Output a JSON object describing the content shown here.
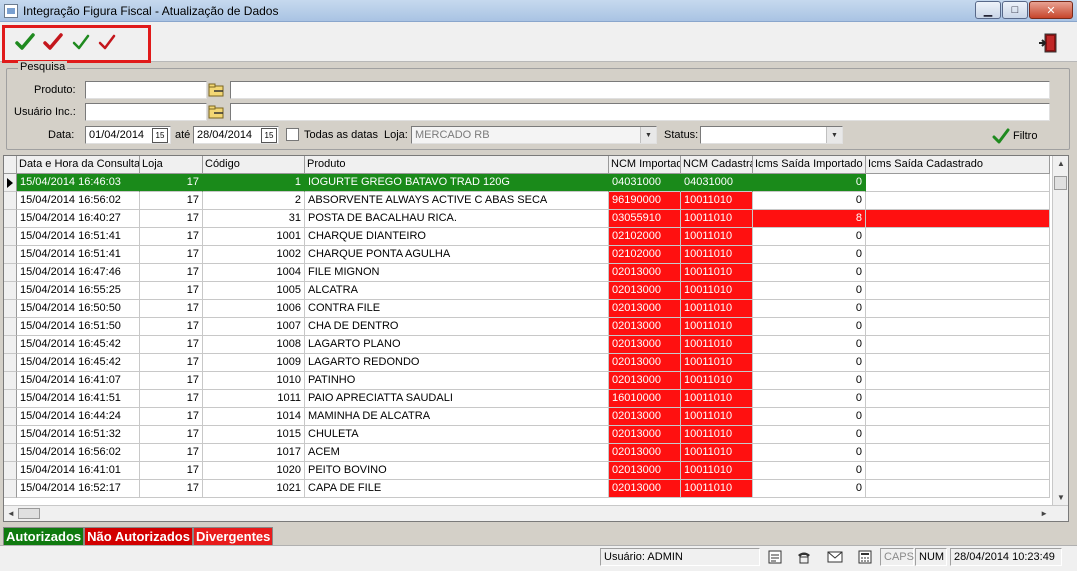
{
  "window": {
    "title": "Integração Figura Fiscal - Atualização de Dados",
    "min_glyph": "▁",
    "max_glyph": "□",
    "close_glyph": "✕"
  },
  "toolbar": {
    "buttons": [
      {
        "icon": "check-green-icon",
        "color": "#1f8a1f"
      },
      {
        "icon": "check-red-icon",
        "color": "#c4161c"
      },
      {
        "icon": "check-green-icon",
        "color": "#1f8a1f"
      },
      {
        "icon": "check-red-icon",
        "color": "#c4161c"
      }
    ],
    "exit_icon": "exit-door-icon"
  },
  "search": {
    "group_title": "Pesquisa",
    "produto_label": "Produto:",
    "produto_code": "",
    "produto_desc": "",
    "usuario_label": "Usuário Inc.:",
    "usuario_code": "",
    "usuario_desc": "",
    "data_label": "Data:",
    "date_from": "01/04/2014",
    "ate_label": "até",
    "date_to": "28/04/2014",
    "calendar_glyph": "15",
    "todas_label": "Todas as datas",
    "loja_label": "Loja:",
    "loja_value": "MERCADO RB",
    "status_label": "Status:",
    "status_value": "",
    "combo_arrow": "▼",
    "filter_label": "Filtro"
  },
  "grid": {
    "columns": [
      "Data e Hora da Consulta",
      "Loja",
      "Código",
      "Produto",
      "NCM Importado",
      "NCM Cadastrado",
      "Icms Saída Importado",
      "Icms Saída Cadastrado"
    ],
    "rows": [
      {
        "datetime": "15/04/2014 16:46:03",
        "loja": "17",
        "codigo": "1",
        "produto": "IOGURTE GREGO BATAVO TRAD 120G",
        "ncm_imp": "04031000",
        "ncm_cad": "04031000",
        "icms_imp": "0",
        "icms_cad": "",
        "status": "autorizado"
      },
      {
        "datetime": "15/04/2014 16:56:02",
        "loja": "17",
        "codigo": "2",
        "produto": "ABSORVENTE ALWAYS ACTIVE C ABAS SECA",
        "ncm_imp": "96190000",
        "ncm_cad": "10011010",
        "icms_imp": "0",
        "icms_cad": "",
        "status": "ncm"
      },
      {
        "datetime": "15/04/2014 16:40:27",
        "loja": "17",
        "codigo": "31",
        "produto": "POSTA DE BACALHAU RICA.",
        "ncm_imp": "03055910",
        "ncm_cad": "10011010",
        "icms_imp": "8",
        "icms_cad": "",
        "status": "ncm_icms"
      },
      {
        "datetime": "15/04/2014 16:51:41",
        "loja": "17",
        "codigo": "1001",
        "produto": "CHARQUE DIANTEIRO",
        "ncm_imp": "02102000",
        "ncm_cad": "10011010",
        "icms_imp": "0",
        "icms_cad": "",
        "status": "ncm"
      },
      {
        "datetime": "15/04/2014 16:51:41",
        "loja": "17",
        "codigo": "1002",
        "produto": "CHARQUE PONTA AGULHA",
        "ncm_imp": "02102000",
        "ncm_cad": "10011010",
        "icms_imp": "0",
        "icms_cad": "",
        "status": "ncm"
      },
      {
        "datetime": "15/04/2014 16:47:46",
        "loja": "17",
        "codigo": "1004",
        "produto": "FILE MIGNON",
        "ncm_imp": "02013000",
        "ncm_cad": "10011010",
        "icms_imp": "0",
        "icms_cad": "",
        "status": "ncm"
      },
      {
        "datetime": "15/04/2014 16:55:25",
        "loja": "17",
        "codigo": "1005",
        "produto": "ALCATRA",
        "ncm_imp": "02013000",
        "ncm_cad": "10011010",
        "icms_imp": "0",
        "icms_cad": "",
        "status": "ncm"
      },
      {
        "datetime": "15/04/2014 16:50:50",
        "loja": "17",
        "codigo": "1006",
        "produto": "CONTRA FILE",
        "ncm_imp": "02013000",
        "ncm_cad": "10011010",
        "icms_imp": "0",
        "icms_cad": "",
        "status": "ncm"
      },
      {
        "datetime": "15/04/2014 16:51:50",
        "loja": "17",
        "codigo": "1007",
        "produto": "CHA DE DENTRO",
        "ncm_imp": "02013000",
        "ncm_cad": "10011010",
        "icms_imp": "0",
        "icms_cad": "",
        "status": "ncm"
      },
      {
        "datetime": "15/04/2014 16:45:42",
        "loja": "17",
        "codigo": "1008",
        "produto": "LAGARTO PLANO",
        "ncm_imp": "02013000",
        "ncm_cad": "10011010",
        "icms_imp": "0",
        "icms_cad": "",
        "status": "ncm"
      },
      {
        "datetime": "15/04/2014 16:45:42",
        "loja": "17",
        "codigo": "1009",
        "produto": "LAGARTO REDONDO",
        "ncm_imp": "02013000",
        "ncm_cad": "10011010",
        "icms_imp": "0",
        "icms_cad": "",
        "status": "ncm"
      },
      {
        "datetime": "15/04/2014 16:41:07",
        "loja": "17",
        "codigo": "1010",
        "produto": "PATINHO",
        "ncm_imp": "02013000",
        "ncm_cad": "10011010",
        "icms_imp": "0",
        "icms_cad": "",
        "status": "ncm"
      },
      {
        "datetime": "15/04/2014 16:41:51",
        "loja": "17",
        "codigo": "1011",
        "produto": "PAIO APRECIATTA SAUDALI",
        "ncm_imp": "16010000",
        "ncm_cad": "10011010",
        "icms_imp": "0",
        "icms_cad": "",
        "status": "ncm"
      },
      {
        "datetime": "15/04/2014 16:44:24",
        "loja": "17",
        "codigo": "1014",
        "produto": "MAMINHA DE ALCATRA",
        "ncm_imp": "02013000",
        "ncm_cad": "10011010",
        "icms_imp": "0",
        "icms_cad": "",
        "status": "ncm"
      },
      {
        "datetime": "15/04/2014 16:51:32",
        "loja": "17",
        "codigo": "1015",
        "produto": "CHULETA",
        "ncm_imp": "02013000",
        "ncm_cad": "10011010",
        "icms_imp": "0",
        "icms_cad": "",
        "status": "ncm"
      },
      {
        "datetime": "15/04/2014 16:56:02",
        "loja": "17",
        "codigo": "1017",
        "produto": "ACEM",
        "ncm_imp": "02013000",
        "ncm_cad": "10011010",
        "icms_imp": "0",
        "icms_cad": "",
        "status": "ncm"
      },
      {
        "datetime": "15/04/2014 16:41:01",
        "loja": "17",
        "codigo": "1020",
        "produto": "PEITO BOVINO",
        "ncm_imp": "02013000",
        "ncm_cad": "10011010",
        "icms_imp": "0",
        "icms_cad": "",
        "status": "ncm"
      },
      {
        "datetime": "15/04/2014 16:52:17",
        "loja": "17",
        "codigo": "1021",
        "produto": "CAPA DE FILE",
        "ncm_imp": "02013000",
        "ncm_cad": "10011010",
        "icms_imp": "0",
        "icms_cad": "",
        "status": "ncm"
      }
    ],
    "scroll_arrows": {
      "up": "▲",
      "down": "▼",
      "left": "◄",
      "right": "►"
    }
  },
  "legend": [
    {
      "label": "Autorizados",
      "color": "#0f7a0f"
    },
    {
      "label": "Não Autorizados",
      "color": "#d20000"
    },
    {
      "label": "Divergentes",
      "color": "#e81c1c"
    }
  ],
  "statusbar": {
    "user": "Usuário: ADMIN",
    "caps": "CAPS",
    "num": "NUM",
    "datetime": "28/04/2014 10:23:49"
  },
  "colors": {
    "green_row": "#1a8a1a",
    "red_cell": "#ff1010"
  }
}
